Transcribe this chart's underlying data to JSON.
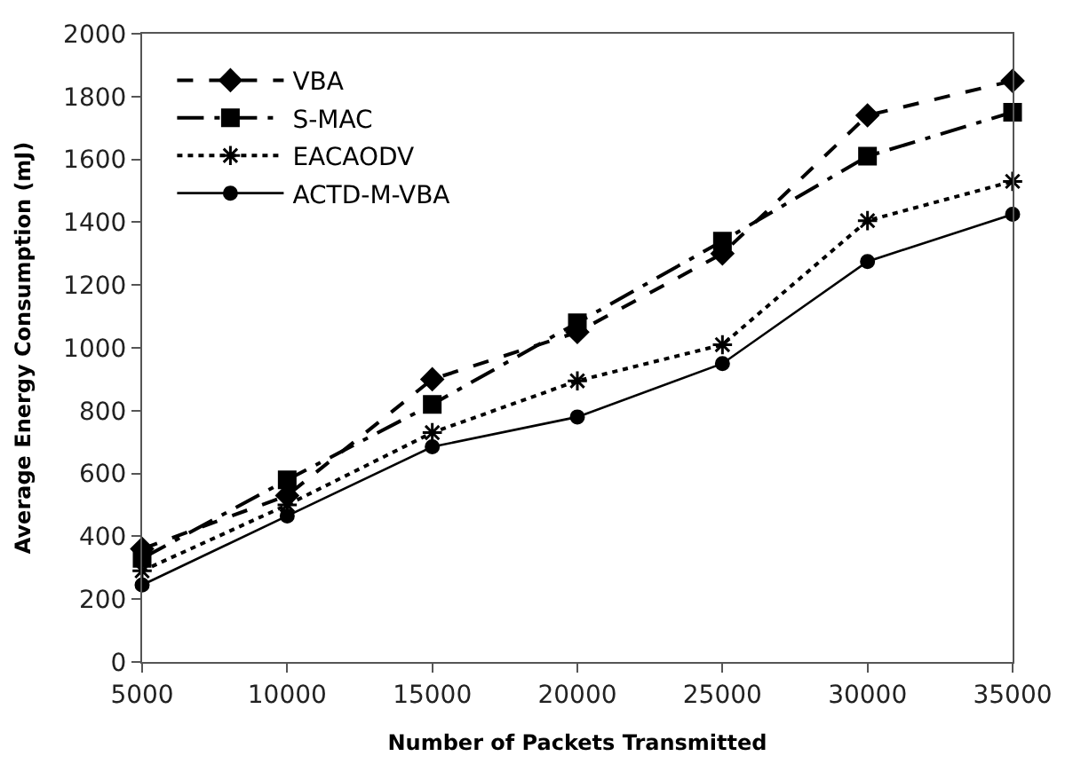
{
  "chart_data": {
    "type": "line",
    "xlabel": "Number of Packets Transmitted",
    "ylabel": "Average Energy Consumption (mJ)",
    "x": [
      5000,
      10000,
      15000,
      20000,
      25000,
      30000,
      35000
    ],
    "series": [
      {
        "name": "VBA",
        "color": "#000000",
        "marker": "diamond",
        "line_style": "dashed",
        "values": [
          360,
          530,
          900,
          1050,
          1300,
          1740,
          1850
        ]
      },
      {
        "name": "S-MAC",
        "color": "#000000",
        "marker": "square",
        "line_style": "dashdot",
        "values": [
          330,
          580,
          820,
          1080,
          1340,
          1610,
          1750
        ]
      },
      {
        "name": "EACAODV",
        "color": "#000000",
        "marker": "cross",
        "line_style": "dotted",
        "values": [
          290,
          500,
          730,
          895,
          1010,
          1405,
          1530
        ]
      },
      {
        "name": "ACTD-M-VBA",
        "color": "#000000",
        "marker": "circle",
        "line_style": "solid",
        "values": [
          245,
          465,
          685,
          780,
          950,
          1275,
          1425
        ]
      }
    ],
    "xlim": [
      5000,
      35000
    ],
    "ylim": [
      0,
      2000
    ],
    "xticks": [
      5000,
      10000,
      15000,
      20000,
      25000,
      30000,
      35000
    ],
    "yticks": [
      0,
      200,
      400,
      600,
      800,
      1000,
      1200,
      1400,
      1600,
      1800,
      2000
    ],
    "legend": "top left"
  }
}
